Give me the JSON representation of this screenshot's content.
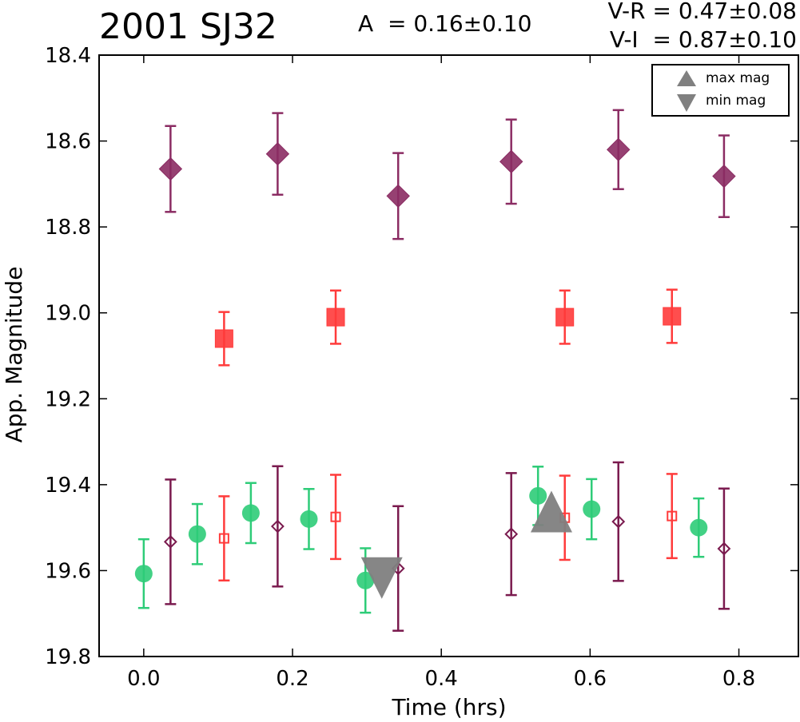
{
  "chart_data": {
    "type": "scatter",
    "title": "2001 SJ32",
    "annotations": {
      "amplitude": "A  = 0.16±0.10",
      "v_r": "V-R = 0.47±0.08",
      "v_i": "V-I  = 0.87±0.10"
    },
    "xlabel": "Time (hrs)",
    "ylabel": "App. Magnitude",
    "xlim": [
      -0.06,
      0.88
    ],
    "ylim": [
      19.8,
      18.4
    ],
    "y_inverted": true,
    "xticks": [
      "0.0",
      "0.2",
      "0.4",
      "0.6",
      "0.8"
    ],
    "yticks": [
      "18.4",
      "18.6",
      "18.8",
      "19.0",
      "19.2",
      "19.4",
      "19.6",
      "19.8"
    ],
    "grid": false,
    "legend": {
      "placement": "top-right",
      "entries": [
        "max mag",
        "min mag"
      ]
    },
    "series": [
      {
        "marker": "diamond",
        "filled": true,
        "color": "#8b2c63",
        "points": [
          {
            "x": 0.036,
            "y": 18.665,
            "err": 0.1
          },
          {
            "x": 0.18,
            "y": 18.63,
            "err": 0.095
          },
          {
            "x": 0.342,
            "y": 18.728,
            "err": 0.1
          },
          {
            "x": 0.494,
            "y": 18.648,
            "err": 0.098
          },
          {
            "x": 0.638,
            "y": 18.62,
            "err": 0.092
          },
          {
            "x": 0.78,
            "y": 18.682,
            "err": 0.095
          }
        ]
      },
      {
        "marker": "square",
        "filled": true,
        "color": "#ff3b3b",
        "points": [
          {
            "x": 0.108,
            "y": 19.06,
            "err": 0.062
          },
          {
            "x": 0.258,
            "y": 19.01,
            "err": 0.062
          },
          {
            "x": 0.566,
            "y": 19.01,
            "err": 0.062
          },
          {
            "x": 0.71,
            "y": 19.008,
            "err": 0.062
          }
        ]
      },
      {
        "marker": "circle",
        "filled": true,
        "color": "#2ecc78",
        "points": [
          {
            "x": 0.0,
            "y": 19.607,
            "err": 0.08
          },
          {
            "x": 0.072,
            "y": 19.515,
            "err": 0.07
          },
          {
            "x": 0.144,
            "y": 19.466,
            "err": 0.07
          },
          {
            "x": 0.222,
            "y": 19.48,
            "err": 0.07
          },
          {
            "x": 0.298,
            "y": 19.623,
            "err": 0.075
          },
          {
            "x": 0.53,
            "y": 19.426,
            "err": 0.068
          },
          {
            "x": 0.602,
            "y": 19.457,
            "err": 0.07
          },
          {
            "x": 0.746,
            "y": 19.5,
            "err": 0.068
          }
        ]
      },
      {
        "marker": "diamond",
        "filled": false,
        "color": "#7a1a4e",
        "points": [
          {
            "x": 0.036,
            "y": 19.533,
            "err": 0.145
          },
          {
            "x": 0.18,
            "y": 19.497,
            "err": 0.14
          },
          {
            "x": 0.342,
            "y": 19.595,
            "err": 0.145
          },
          {
            "x": 0.494,
            "y": 19.515,
            "err": 0.142
          },
          {
            "x": 0.638,
            "y": 19.486,
            "err": 0.138
          },
          {
            "x": 0.78,
            "y": 19.549,
            "err": 0.14
          }
        ]
      },
      {
        "marker": "square",
        "filled": false,
        "color": "#ff3b3b",
        "points": [
          {
            "x": 0.108,
            "y": 19.525,
            "err": 0.098
          },
          {
            "x": 0.258,
            "y": 19.475,
            "err": 0.098
          },
          {
            "x": 0.566,
            "y": 19.477,
            "err": 0.098
          },
          {
            "x": 0.71,
            "y": 19.473,
            "err": 0.098
          }
        ]
      },
      {
        "name": "max mag",
        "marker": "triangle-up",
        "filled": true,
        "color": "#808080",
        "points": [
          {
            "x": 0.548,
            "y": 19.47
          }
        ]
      },
      {
        "name": "min mag",
        "marker": "triangle-down",
        "filled": true,
        "color": "#808080",
        "points": [
          {
            "x": 0.32,
            "y": 19.61
          }
        ]
      }
    ]
  }
}
